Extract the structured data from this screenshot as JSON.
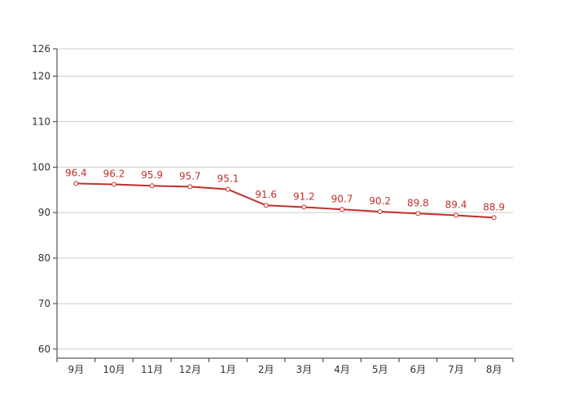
{
  "chart_data": {
    "type": "line",
    "categories": [
      "9月",
      "10月",
      "11月",
      "12月",
      "1月",
      "2月",
      "3月",
      "4月",
      "5月",
      "6月",
      "7月",
      "8月"
    ],
    "series": [
      {
        "values": [
          96.4,
          96.2,
          95.9,
          95.7,
          95.1,
          91.6,
          91.2,
          90.7,
          90.2,
          89.8,
          89.4,
          88.9
        ]
      }
    ],
    "y_ticks": [
      60,
      70,
      80,
      90,
      100,
      110,
      120,
      126
    ],
    "ylim": [
      58,
      126
    ],
    "grid": true,
    "data_labels": true,
    "colors": {
      "line": "#c0302b",
      "marker_fill": "#ffffff",
      "label": "#c0302b",
      "grid": "#cccccc",
      "axis": "#333333"
    }
  }
}
